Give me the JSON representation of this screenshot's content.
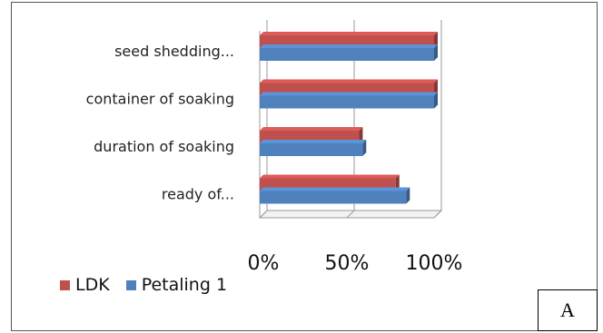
{
  "chart_data": {
    "type": "bar",
    "orientation": "horizontal",
    "style": "3d",
    "categories": [
      "seed shedding...",
      "container of soaking",
      "duration of soaking",
      "ready of..."
    ],
    "series": [
      {
        "name": "LDK",
        "values": [
          100,
          100,
          57,
          78
        ],
        "color": "#c0504d"
      },
      {
        "name": "Petaling 1",
        "values": [
          100,
          100,
          59,
          84
        ],
        "color": "#4f81bd"
      }
    ],
    "xlim": [
      0,
      100
    ],
    "x_ticks": [
      "0%",
      "50%",
      "100%"
    ],
    "grid": true,
    "legend": "bottom-left"
  },
  "legend": {
    "ldk": "LDK",
    "petaling": "Petaling 1"
  },
  "panel_tag": "A"
}
